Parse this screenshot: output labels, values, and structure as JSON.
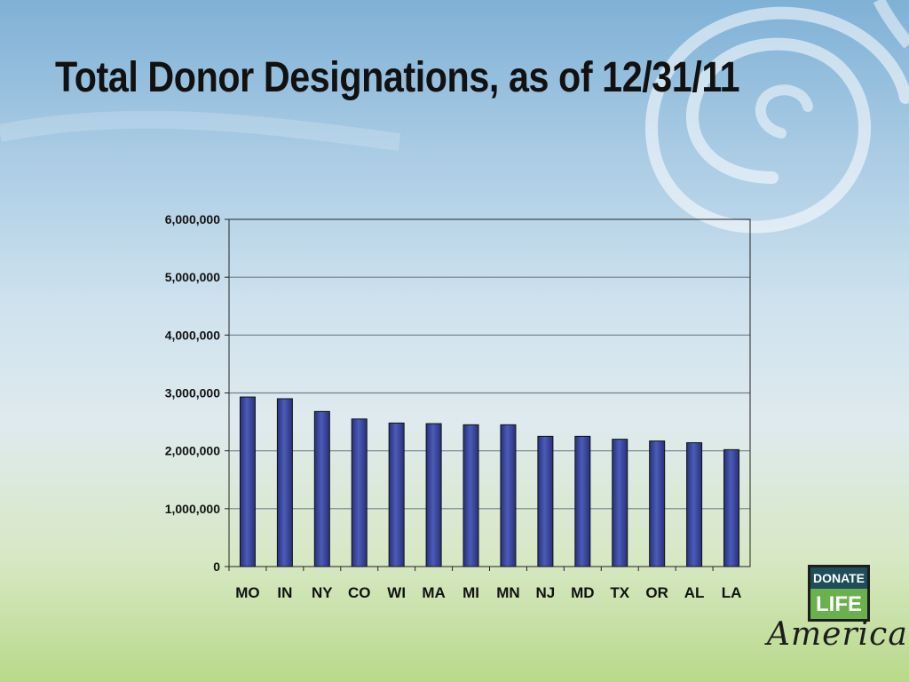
{
  "slide": {
    "title": "Total Donor Designations, as of 12/31/11"
  },
  "logo": {
    "top_text": "DONATE",
    "bottom_text": "LIFE",
    "script_text": "America",
    "colors": {
      "dark": "#1f4e5a",
      "green": "#6ab04c"
    }
  },
  "colors": {
    "bar_fill": "#27317a",
    "bar_highlight": "#4b5bb8",
    "gridline": "#6f7f8a",
    "axis": "#222222"
  },
  "chart_data": {
    "type": "bar",
    "title": "",
    "xlabel": "",
    "ylabel": "",
    "categories": [
      "MO",
      "IN",
      "NY",
      "CO",
      "WI",
      "MA",
      "MI",
      "MN",
      "NJ",
      "MD",
      "TX",
      "OR",
      "AL",
      "LA"
    ],
    "values": [
      2930000,
      2900000,
      2680000,
      2550000,
      2480000,
      2470000,
      2450000,
      2450000,
      2250000,
      2250000,
      2200000,
      2170000,
      2140000,
      2020000
    ],
    "ylim": [
      0,
      6000000
    ],
    "yticks": [
      0,
      1000000,
      2000000,
      3000000,
      4000000,
      5000000,
      6000000
    ],
    "ytick_labels": [
      "0",
      "1,000,000",
      "2,000,000",
      "3,000,000",
      "4,000,000",
      "5,000,000",
      "6,000,000"
    ],
    "grid": true,
    "legend": "none"
  }
}
